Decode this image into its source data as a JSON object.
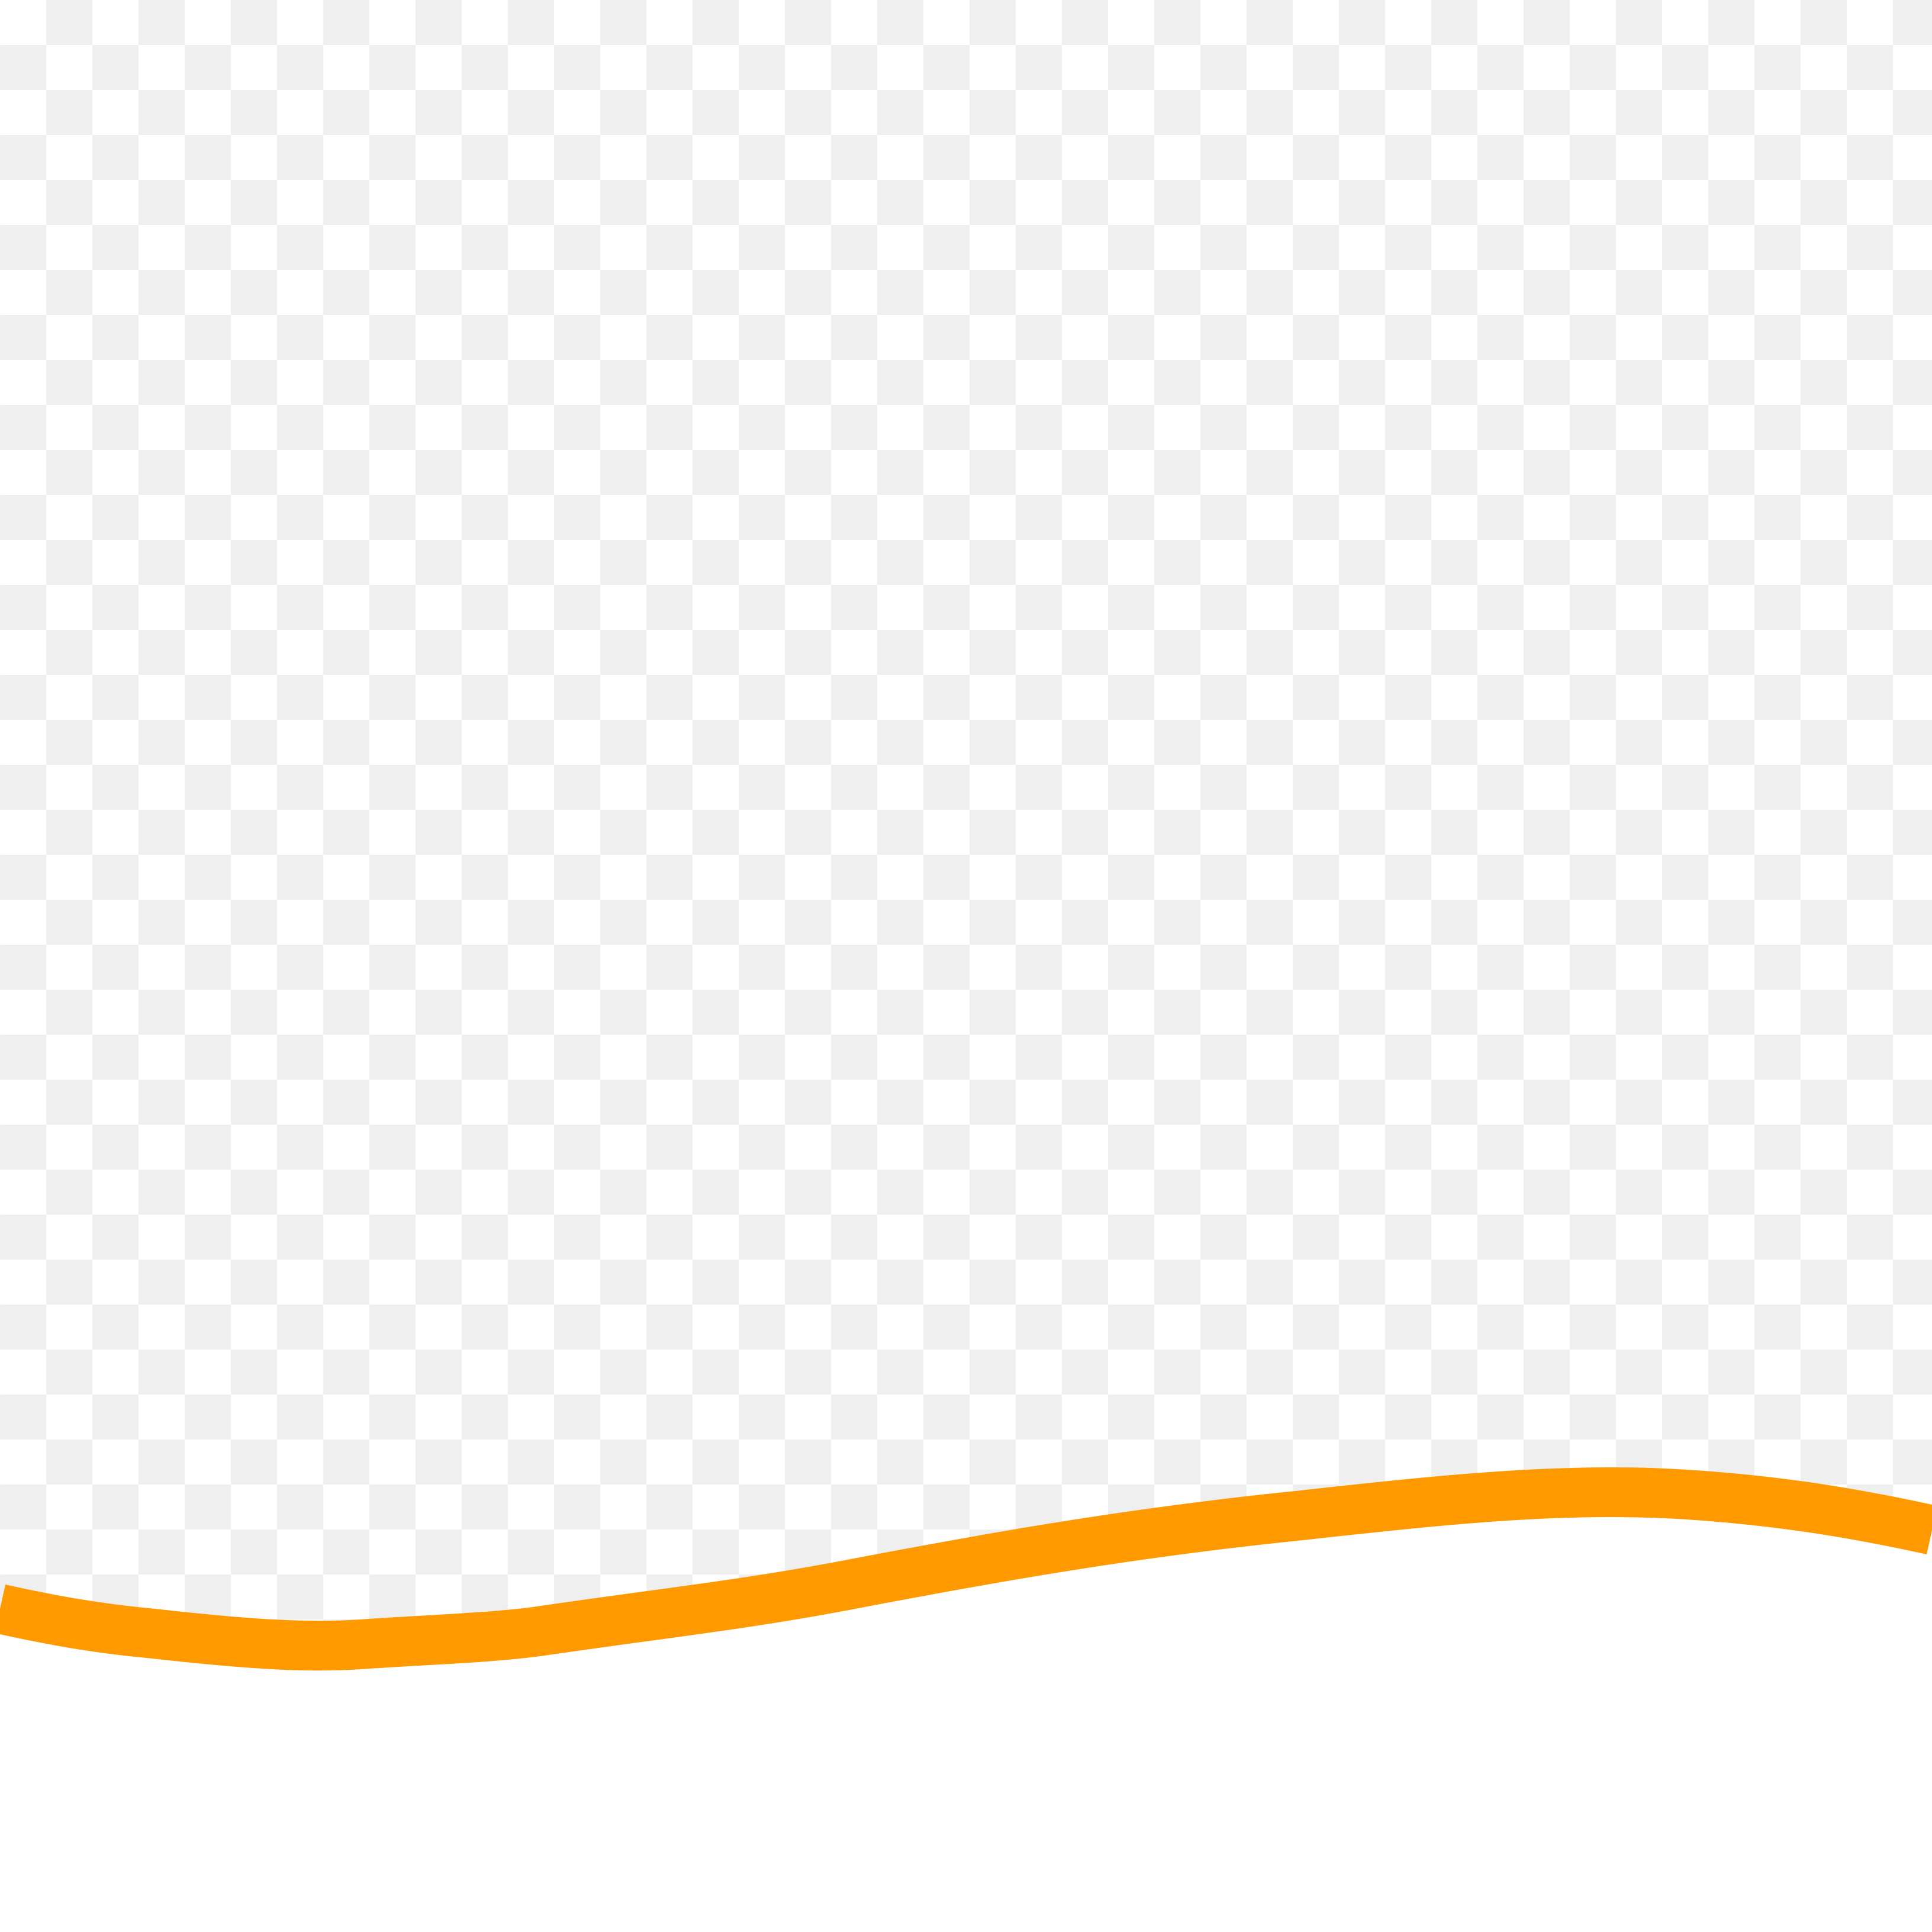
{
  "colors": {
    "checker_light": "#ffffff",
    "checker_dark": "#efefef",
    "wave_fill": "#ffffff",
    "wave_stroke": "#ff9900"
  },
  "elements": {
    "background": "transparency-checkerboard",
    "shape": "wave-band"
  }
}
